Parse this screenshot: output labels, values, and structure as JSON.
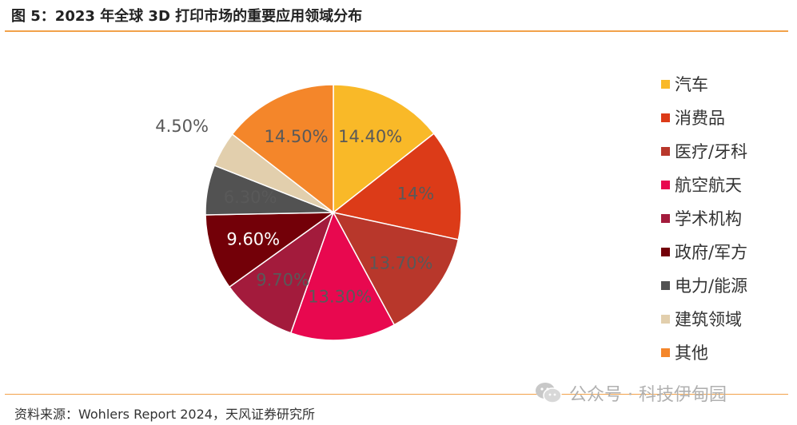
{
  "title": "图 5：2023 年全球 3D 打印市场的重要应用领域分布",
  "source": "资料来源：Wohlers Report 2024，天风证券研究所",
  "watermark": "公众号 · 科技伊甸园",
  "chart_data": {
    "type": "pie",
    "legend_position": "right",
    "slices": [
      {
        "name": "汽车",
        "value": 14.4,
        "label": "14.40%",
        "color": "#f9b928",
        "label_color": "#595959"
      },
      {
        "name": "消费品",
        "value": 14.0,
        "label": "14%",
        "color": "#dc3b18",
        "label_color": "#595959"
      },
      {
        "name": "医疗/牙科",
        "value": 13.7,
        "label": "13.70%",
        "color": "#b8372b",
        "label_color": "#595959"
      },
      {
        "name": "航空航天",
        "value": 13.3,
        "label": "13.30%",
        "color": "#e8084f",
        "label_color": "#595959"
      },
      {
        "name": "学术机构",
        "value": 9.7,
        "label": "9.70%",
        "color": "#a31b3c",
        "label_color": "#595959"
      },
      {
        "name": "政府/军方",
        "value": 9.6,
        "label": "9.60%",
        "color": "#730008",
        "label_color": "#ffffff"
      },
      {
        "name": "电力/能源",
        "value": 6.3,
        "label": "6.30%",
        "color": "#525252",
        "label_color": "#595959"
      },
      {
        "name": "建筑领域",
        "value": 4.5,
        "label": "4.50%",
        "color": "#e2cfad",
        "label_color": "#595959"
      },
      {
        "name": "其他",
        "value": 14.5,
        "label": "14.50%",
        "color": "#f4862a",
        "label_color": "#595959"
      }
    ]
  }
}
